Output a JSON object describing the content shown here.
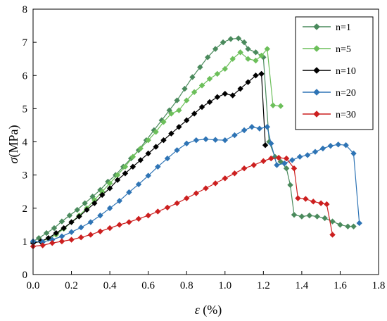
{
  "chart_data": {
    "type": "line",
    "title": "",
    "xlabel_symbol": "ε",
    "xlabel_unit": " (%)",
    "ylabel_symbol": "σ",
    "ylabel_unit": "(MPa)",
    "xlim": [
      0,
      1.8
    ],
    "ylim": [
      0,
      8
    ],
    "xticks": [
      "0.0",
      "0.2",
      "0.4",
      "0.6",
      "0.8",
      "1.0",
      "1.2",
      "1.4",
      "1.6",
      "1.8"
    ],
    "yticks": [
      "0",
      "1",
      "2",
      "3",
      "4",
      "5",
      "6",
      "7",
      "8"
    ],
    "grid": false,
    "legend_position": "top-right",
    "marker": "diamond",
    "series": [
      {
        "name": "n=1",
        "color": "#4a8a5c",
        "points": [
          [
            0.0,
            1.0
          ],
          [
            0.03,
            1.1
          ],
          [
            0.07,
            1.25
          ],
          [
            0.11,
            1.4
          ],
          [
            0.15,
            1.6
          ],
          [
            0.19,
            1.78
          ],
          [
            0.23,
            1.95
          ],
          [
            0.27,
            2.15
          ],
          [
            0.31,
            2.35
          ],
          [
            0.35,
            2.55
          ],
          [
            0.39,
            2.8
          ],
          [
            0.43,
            3.0
          ],
          [
            0.47,
            3.25
          ],
          [
            0.51,
            3.5
          ],
          [
            0.55,
            3.75
          ],
          [
            0.59,
            4.05
          ],
          [
            0.63,
            4.35
          ],
          [
            0.67,
            4.65
          ],
          [
            0.71,
            4.95
          ],
          [
            0.75,
            5.25
          ],
          [
            0.79,
            5.6
          ],
          [
            0.83,
            5.95
          ],
          [
            0.87,
            6.25
          ],
          [
            0.91,
            6.55
          ],
          [
            0.95,
            6.8
          ],
          [
            0.99,
            7.0
          ],
          [
            1.03,
            7.1
          ],
          [
            1.07,
            7.12
          ],
          [
            1.1,
            7.0
          ],
          [
            1.12,
            6.8
          ],
          [
            1.16,
            6.7
          ],
          [
            1.2,
            6.55
          ],
          [
            1.23,
            4.0
          ],
          [
            1.26,
            3.55
          ],
          [
            1.29,
            3.4
          ],
          [
            1.32,
            3.2
          ],
          [
            1.34,
            2.7
          ],
          [
            1.36,
            1.8
          ],
          [
            1.4,
            1.75
          ],
          [
            1.44,
            1.78
          ],
          [
            1.48,
            1.75
          ],
          [
            1.52,
            1.7
          ],
          [
            1.56,
            1.6
          ],
          [
            1.6,
            1.5
          ],
          [
            1.64,
            1.45
          ],
          [
            1.67,
            1.45
          ]
        ]
      },
      {
        "name": "n=5",
        "color": "#6cbf5a",
        "points": [
          [
            0.0,
            0.95
          ],
          [
            0.04,
            1.0
          ],
          [
            0.08,
            1.08
          ],
          [
            0.12,
            1.2
          ],
          [
            0.16,
            1.38
          ],
          [
            0.2,
            1.58
          ],
          [
            0.24,
            1.78
          ],
          [
            0.28,
            2.0
          ],
          [
            0.32,
            2.25
          ],
          [
            0.36,
            2.5
          ],
          [
            0.4,
            2.75
          ],
          [
            0.44,
            3.0
          ],
          [
            0.48,
            3.25
          ],
          [
            0.52,
            3.55
          ],
          [
            0.56,
            3.8
          ],
          [
            0.6,
            4.05
          ],
          [
            0.64,
            4.3
          ],
          [
            0.68,
            4.6
          ],
          [
            0.72,
            4.85
          ],
          [
            0.76,
            4.95
          ],
          [
            0.8,
            5.25
          ],
          [
            0.84,
            5.5
          ],
          [
            0.88,
            5.7
          ],
          [
            0.92,
            5.9
          ],
          [
            0.96,
            6.05
          ],
          [
            1.0,
            6.2
          ],
          [
            1.04,
            6.5
          ],
          [
            1.08,
            6.7
          ],
          [
            1.12,
            6.5
          ],
          [
            1.16,
            6.45
          ],
          [
            1.19,
            6.6
          ],
          [
            1.22,
            6.8
          ],
          [
            1.25,
            5.1
          ],
          [
            1.29,
            5.08
          ]
        ]
      },
      {
        "name": "n=10",
        "color": "#000000",
        "points": [
          [
            0.0,
            0.95
          ],
          [
            0.04,
            1.0
          ],
          [
            0.08,
            1.1
          ],
          [
            0.12,
            1.25
          ],
          [
            0.16,
            1.4
          ],
          [
            0.2,
            1.58
          ],
          [
            0.24,
            1.75
          ],
          [
            0.28,
            1.95
          ],
          [
            0.32,
            2.15
          ],
          [
            0.36,
            2.4
          ],
          [
            0.4,
            2.6
          ],
          [
            0.44,
            2.85
          ],
          [
            0.48,
            3.05
          ],
          [
            0.52,
            3.25
          ],
          [
            0.56,
            3.45
          ],
          [
            0.6,
            3.65
          ],
          [
            0.64,
            3.85
          ],
          [
            0.68,
            4.05
          ],
          [
            0.72,
            4.25
          ],
          [
            0.76,
            4.45
          ],
          [
            0.8,
            4.65
          ],
          [
            0.84,
            4.85
          ],
          [
            0.88,
            5.05
          ],
          [
            0.92,
            5.2
          ],
          [
            0.96,
            5.35
          ],
          [
            1.0,
            5.45
          ],
          [
            1.04,
            5.4
          ],
          [
            1.08,
            5.6
          ],
          [
            1.12,
            5.8
          ],
          [
            1.16,
            6.0
          ],
          [
            1.19,
            6.05
          ],
          [
            1.21,
            3.9
          ]
        ]
      },
      {
        "name": "n=20",
        "color": "#2e74b5",
        "points": [
          [
            0.0,
            1.0
          ],
          [
            0.05,
            0.98
          ],
          [
            0.1,
            1.05
          ],
          [
            0.15,
            1.15
          ],
          [
            0.2,
            1.28
          ],
          [
            0.25,
            1.42
          ],
          [
            0.3,
            1.58
          ],
          [
            0.35,
            1.78
          ],
          [
            0.4,
            2.0
          ],
          [
            0.45,
            2.22
          ],
          [
            0.5,
            2.48
          ],
          [
            0.55,
            2.72
          ],
          [
            0.6,
            2.98
          ],
          [
            0.65,
            3.25
          ],
          [
            0.7,
            3.5
          ],
          [
            0.75,
            3.75
          ],
          [
            0.8,
            3.95
          ],
          [
            0.85,
            4.05
          ],
          [
            0.9,
            4.08
          ],
          [
            0.95,
            4.06
          ],
          [
            1.0,
            4.05
          ],
          [
            1.05,
            4.2
          ],
          [
            1.1,
            4.35
          ],
          [
            1.14,
            4.45
          ],
          [
            1.18,
            4.4
          ],
          [
            1.22,
            4.45
          ],
          [
            1.24,
            3.95
          ],
          [
            1.27,
            3.3
          ],
          [
            1.31,
            3.35
          ],
          [
            1.35,
            3.45
          ],
          [
            1.39,
            3.55
          ],
          [
            1.43,
            3.6
          ],
          [
            1.47,
            3.7
          ],
          [
            1.51,
            3.8
          ],
          [
            1.55,
            3.88
          ],
          [
            1.59,
            3.92
          ],
          [
            1.63,
            3.9
          ],
          [
            1.67,
            3.65
          ],
          [
            1.7,
            1.55
          ]
        ]
      },
      {
        "name": "n=30",
        "color": "#cc1f1f",
        "points": [
          [
            0.0,
            0.85
          ],
          [
            0.05,
            0.88
          ],
          [
            0.1,
            0.95
          ],
          [
            0.15,
            1.0
          ],
          [
            0.2,
            1.05
          ],
          [
            0.25,
            1.12
          ],
          [
            0.3,
            1.2
          ],
          [
            0.35,
            1.3
          ],
          [
            0.4,
            1.4
          ],
          [
            0.45,
            1.5
          ],
          [
            0.5,
            1.58
          ],
          [
            0.55,
            1.68
          ],
          [
            0.6,
            1.78
          ],
          [
            0.65,
            1.9
          ],
          [
            0.7,
            2.02
          ],
          [
            0.75,
            2.15
          ],
          [
            0.8,
            2.3
          ],
          [
            0.85,
            2.45
          ],
          [
            0.9,
            2.6
          ],
          [
            0.95,
            2.75
          ],
          [
            1.0,
            2.9
          ],
          [
            1.05,
            3.05
          ],
          [
            1.1,
            3.2
          ],
          [
            1.15,
            3.3
          ],
          [
            1.2,
            3.42
          ],
          [
            1.24,
            3.5
          ],
          [
            1.28,
            3.52
          ],
          [
            1.32,
            3.5
          ],
          [
            1.36,
            3.2
          ],
          [
            1.38,
            2.3
          ],
          [
            1.42,
            2.28
          ],
          [
            1.46,
            2.2
          ],
          [
            1.5,
            2.15
          ],
          [
            1.53,
            2.12
          ],
          [
            1.56,
            1.2
          ]
        ]
      }
    ]
  }
}
